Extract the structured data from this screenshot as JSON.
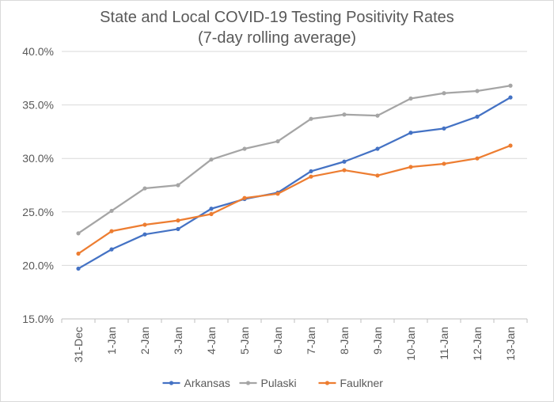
{
  "chart_data": {
    "type": "line",
    "title": [
      "State and Local COVID-19 Testing Positivity Rates",
      "(7-day rolling average)"
    ],
    "xlabel": "",
    "ylabel": "",
    "categories": [
      "31-Dec",
      "1-Jan",
      "2-Jan",
      "3-Jan",
      "4-Jan",
      "5-Jan",
      "6-Jan",
      "7-Jan",
      "8-Jan",
      "9-Jan",
      "10-Jan",
      "11-Jan",
      "12-Jan",
      "13-Jan"
    ],
    "ylim": [
      15.0,
      40.0
    ],
    "yticks": [
      15.0,
      20.0,
      25.0,
      30.0,
      35.0,
      40.0
    ],
    "ytick_labels": [
      "15.0%",
      "20.0%",
      "25.0%",
      "30.0%",
      "35.0%",
      "40.0%"
    ],
    "grid": true,
    "legend_position": "bottom",
    "series": [
      {
        "name": "Arkansas",
        "color": "#4472C4",
        "values": [
          19.7,
          21.5,
          22.9,
          23.4,
          25.3,
          26.2,
          26.8,
          28.8,
          29.7,
          30.9,
          32.4,
          32.8,
          33.9,
          35.7
        ]
      },
      {
        "name": "Pulaski",
        "color": "#A5A5A5",
        "values": [
          23.0,
          25.1,
          27.2,
          27.5,
          29.9,
          30.9,
          31.6,
          33.7,
          34.1,
          34.0,
          35.6,
          36.1,
          36.3,
          36.8
        ]
      },
      {
        "name": "Faulkner",
        "color": "#ED7D31",
        "values": [
          21.1,
          23.2,
          23.8,
          24.2,
          24.8,
          26.3,
          26.7,
          28.3,
          28.9,
          28.4,
          29.2,
          29.5,
          30.0,
          31.2
        ]
      }
    ]
  }
}
